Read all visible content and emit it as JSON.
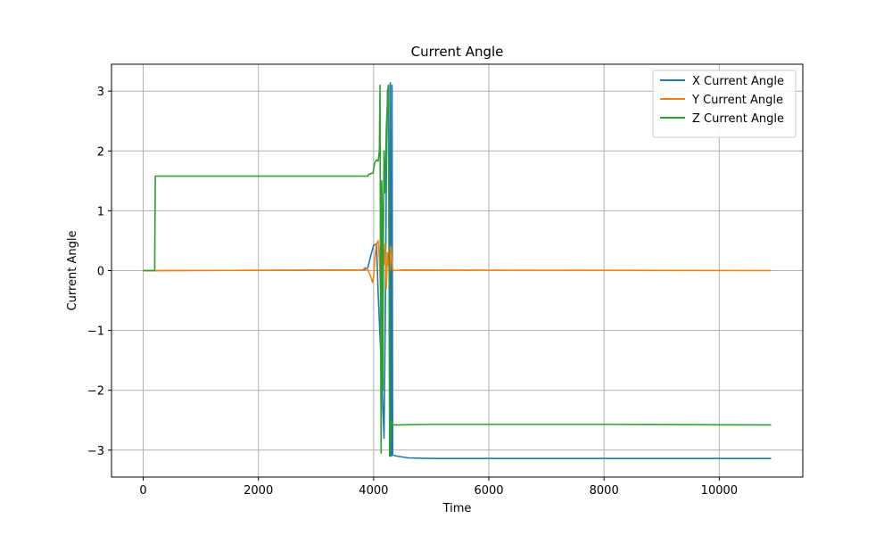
{
  "chart_data": {
    "type": "line",
    "title": "Current Angle",
    "xlabel": "Time",
    "ylabel": "Current Angle",
    "xlim": [
      -550,
      11450
    ],
    "ylim": [
      -3.45,
      3.45
    ],
    "xticks": [
      0,
      2000,
      4000,
      6000,
      8000,
      10000
    ],
    "xtick_labels": [
      "0",
      "2000",
      "4000",
      "6000",
      "8000",
      "10000"
    ],
    "yticks": [
      -3,
      -2,
      -1,
      0,
      1,
      2,
      3
    ],
    "ytick_labels": [
      "−3",
      "−2",
      "−1",
      "0",
      "1",
      "2",
      "3"
    ],
    "grid": true,
    "legend_position": "top-right",
    "series": [
      {
        "name": "X Current Angle",
        "color": "#1f77b4",
        "x": [
          0,
          200,
          3800,
          3850,
          3900,
          3950,
          4000,
          4050,
          4080,
          4120,
          4160,
          4180,
          4200,
          4220,
          4240,
          4260,
          4280,
          4290,
          4300,
          4310,
          4320,
          4330,
          4400,
          4600,
          5000,
          6000,
          8000,
          10900
        ],
        "y": [
          0,
          0,
          0.01,
          0.02,
          0.05,
          0.25,
          0.42,
          0.45,
          -0.4,
          -1.3,
          -2.25,
          -2.8,
          -1.0,
          1.5,
          3.0,
          3.1,
          -3.1,
          3.14,
          -3.1,
          -3.1,
          3.1,
          -3.08,
          -3.1,
          -3.13,
          -3.14,
          -3.14,
          -3.14,
          -3.14
        ]
      },
      {
        "name": "Y Current Angle",
        "color": "#ff7f0e",
        "x": [
          0,
          200,
          3750,
          3800,
          3850,
          3900,
          3950,
          3980,
          4000,
          4030,
          4050,
          4080,
          4100,
          4120,
          4140,
          4160,
          4180,
          4200,
          4220,
          4240,
          4260,
          4280,
          4300,
          4330,
          4350,
          4500,
          10900
        ],
        "y": [
          0,
          0,
          0.01,
          0.0,
          0.05,
          0.02,
          -0.1,
          -0.2,
          -0.1,
          0.3,
          0.45,
          0.5,
          0.2,
          -0.3,
          0.2,
          0.5,
          0.1,
          0.45,
          -0.3,
          0.3,
          0.1,
          0.0,
          0.4,
          0.02,
          0.0,
          0.01,
          0.0
        ]
      },
      {
        "name": "Z Current Angle",
        "color": "#2ca02c",
        "x": [
          0,
          200,
          210,
          700,
          3900,
          3910,
          3940,
          3990,
          4000,
          4020,
          4050,
          4080,
          4100,
          4110,
          4120,
          4130,
          4140,
          4150,
          4160,
          4170,
          4180,
          4200,
          4220,
          4240,
          4260,
          4280,
          4300,
          4320,
          4340,
          4400,
          5000,
          6000,
          8000,
          10900
        ],
        "y": [
          0,
          0,
          1.58,
          1.58,
          1.58,
          1.6,
          1.62,
          1.63,
          1.7,
          1.8,
          1.85,
          1.83,
          2.0,
          3.1,
          -0.5,
          -3.05,
          1.5,
          1.0,
          -2.0,
          0.5,
          2.0,
          1.3,
          2.4,
          2.8,
          3.1,
          -3.1,
          -2.5,
          -2.55,
          -2.58,
          -2.58,
          -2.57,
          -2.57,
          -2.57,
          -2.58
        ]
      }
    ]
  }
}
